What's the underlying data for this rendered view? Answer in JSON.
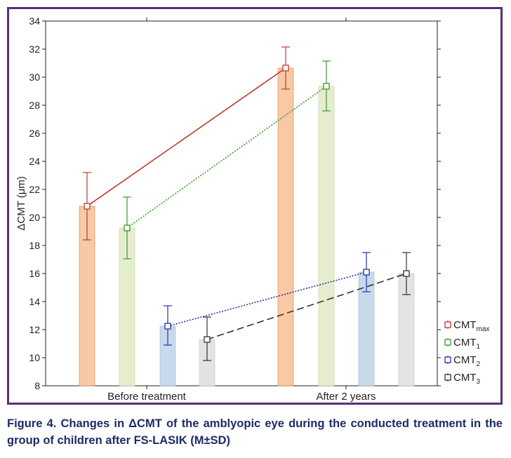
{
  "chart_data": {
    "type": "bar",
    "ylabel": "ΔCMT (μm)",
    "ylim": [
      8,
      34
    ],
    "yticks": [
      "8",
      "10",
      "12",
      "14",
      "16",
      "18",
      "20",
      "22",
      "24",
      "26",
      "28",
      "30",
      "32",
      "34"
    ],
    "categories": [
      "Before treatment",
      "After 2 years"
    ],
    "series": [
      {
        "name": "CMT",
        "sub": "max",
        "values": [
          20.8,
          30.65
        ],
        "sd_low": [
          18.4,
          29.15
        ],
        "sd_high": [
          23.2,
          32.15
        ],
        "bar_color": "#f7c9a4",
        "bar_stroke": "#e0864a",
        "line_color": "#c0392b",
        "line_style": "solid"
      },
      {
        "name": "CMT",
        "sub": "1",
        "values": [
          19.25,
          29.35
        ],
        "sd_low": [
          17.05,
          27.6
        ],
        "sd_high": [
          21.45,
          31.15
        ],
        "bar_color": "#e6edcf",
        "bar_stroke": "#c7d49a",
        "line_color": "#3a9a2a",
        "line_style": "dotted"
      },
      {
        "name": "CMT",
        "sub": "2",
        "values": [
          12.25,
          16.1
        ],
        "sd_low": [
          10.9,
          14.7
        ],
        "sd_high": [
          13.7,
          17.5
        ],
        "bar_color": "#c9d9ec",
        "bar_stroke": "#9db7d8",
        "line_color": "#2431a8",
        "line_style": "dotted"
      },
      {
        "name": "CMT",
        "sub": "3",
        "values": [
          11.3,
          16.0
        ],
        "sd_low": [
          9.8,
          14.5
        ],
        "sd_high": [
          12.9,
          17.5
        ],
        "bar_color": "#e3e3e3",
        "bar_stroke": "#c4c4c4",
        "line_color": "#333333",
        "line_style": "dashed"
      }
    ],
    "legend_position": "right",
    "grid": false
  },
  "caption": "Figure 4. Changes in ΔCMT of the amblyopic eye during the conducted treatment in the group of children after FS-LASIK (M±SD)",
  "colors": {
    "frame": "#5a2d7e",
    "caption": "#1f2b66"
  }
}
